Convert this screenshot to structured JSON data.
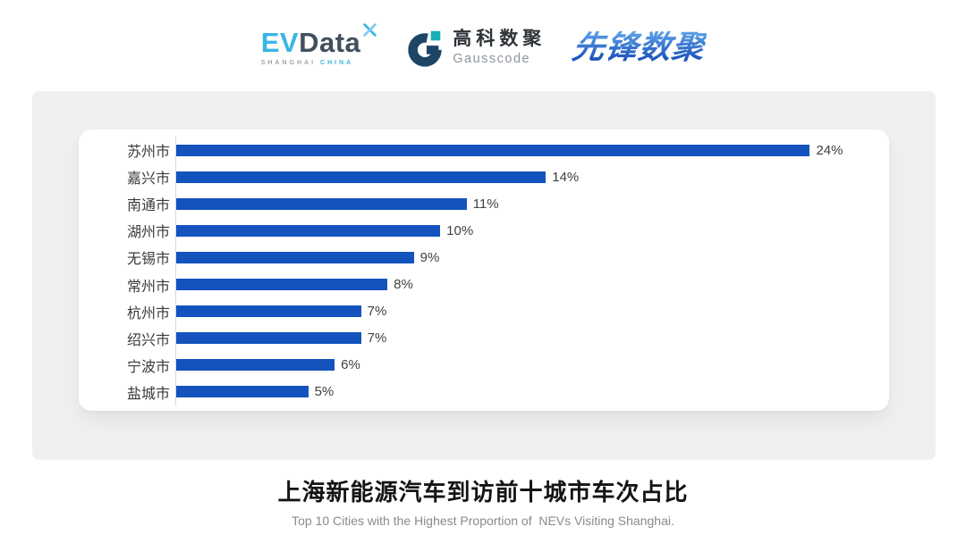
{
  "header": {
    "evdata": {
      "ev": "EV",
      "data": "Data",
      "mark_icon": "pinwheel-x",
      "sub_left": "SHANGHAI",
      "sub_right": "CHINA"
    },
    "gausscode": {
      "icon": "g-mark",
      "name_cn": "高科数聚",
      "name_en": "Gausscode"
    },
    "xianfeng": {
      "name": "先锋数聚"
    }
  },
  "chart_data": {
    "type": "bar",
    "orientation": "horizontal",
    "categories": [
      "苏州市",
      "嘉兴市",
      "南通市",
      "湖州市",
      "无锡市",
      "常州市",
      "杭州市",
      "绍兴市",
      "宁波市",
      "盐城市"
    ],
    "values": [
      24,
      14,
      11,
      10,
      9,
      8,
      7,
      7,
      6,
      5
    ],
    "labels": [
      "24%",
      "14%",
      "11%",
      "10%",
      "9%",
      "8%",
      "7%",
      "7%",
      "6%",
      "5%"
    ],
    "xlim": [
      0,
      27
    ],
    "grid": false,
    "legend": "none",
    "value_label_position": "end-of-bar",
    "bar_color": "#1453BE",
    "axis_line_color": "#D9D9D9"
  },
  "footer": {
    "title": "上海新能源汽车到访前十城市车次占比",
    "subtitle": "Top 10 Cities with the Highest Proportion of  NEVs Visiting Shanghai."
  },
  "colors": {
    "page_bg": "#FFFFFF",
    "panel_bg": "#F0F0F0",
    "card_bg": "#FFFFFF",
    "bar_blue": "#1453BE",
    "evdata_cyan": "#3AB5E6",
    "evdata_dark": "#424F5E",
    "gausscode_navy": "#1C4566",
    "gausscode_teal": "#17AFB8",
    "xianfeng_blue": "#2B66C9"
  }
}
